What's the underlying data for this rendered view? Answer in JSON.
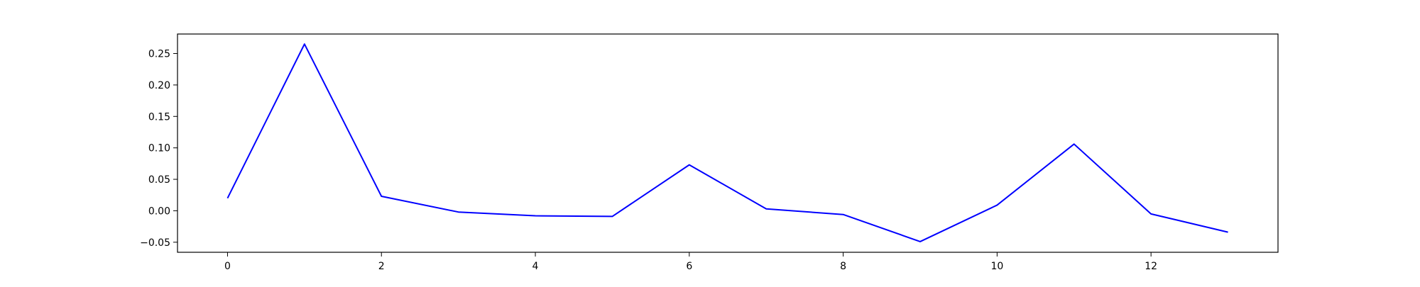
{
  "chart_data": {
    "type": "line",
    "title": "",
    "xlabel": "",
    "ylabel": "",
    "xlim": [
      -0.65,
      13.65
    ],
    "ylim": [
      -0.066,
      0.281
    ],
    "xticks": [
      0,
      2,
      4,
      6,
      8,
      10,
      12
    ],
    "yticks": [
      -0.05,
      0.0,
      0.05,
      0.1,
      0.15,
      0.2,
      0.25
    ],
    "xtick_labels": [
      "0",
      "2",
      "4",
      "6",
      "8",
      "10",
      "12"
    ],
    "ytick_labels": [
      "−0.05",
      "0.00",
      "0.05",
      "0.10",
      "0.15",
      "0.20",
      "0.25"
    ],
    "grid": false,
    "legend": false,
    "series": [
      {
        "color": "#0000ff",
        "x": [
          0,
          1,
          2,
          3,
          4,
          5,
          6,
          7,
          8,
          9,
          10,
          11,
          12,
          13
        ],
        "values": [
          0.02,
          0.265,
          0.023,
          -0.002,
          -0.008,
          -0.009,
          0.073,
          0.003,
          -0.006,
          -0.049,
          0.009,
          0.106,
          -0.005,
          -0.034
        ]
      }
    ]
  }
}
